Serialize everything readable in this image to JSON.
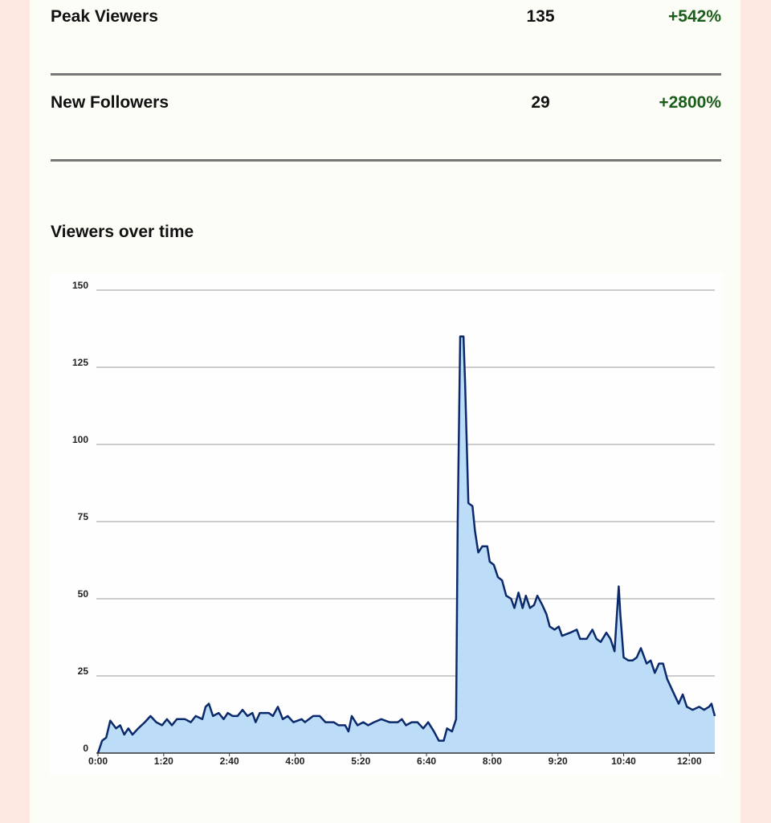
{
  "stats": {
    "rows": [
      {
        "label": "Peak Viewers",
        "value": 135,
        "change": "+542%"
      },
      {
        "label": "New Followers",
        "value": 29,
        "change": "+2800%"
      }
    ]
  },
  "chart_data": {
    "type": "area",
    "title": "Viewers over time",
    "x": [
      0,
      5,
      10,
      15,
      22,
      27,
      32,
      37,
      42,
      49,
      57,
      64,
      71,
      78,
      84,
      90,
      96,
      106,
      113,
      119,
      127,
      131,
      135,
      140,
      147,
      153,
      158,
      164,
      170,
      176,
      182,
      188,
      192,
      197,
      208,
      213,
      219,
      225,
      231,
      238,
      248,
      252,
      262,
      270,
      277,
      287,
      293,
      301,
      305,
      309,
      316,
      323,
      329,
      336,
      345,
      355,
      365,
      370,
      375,
      382,
      389,
      396,
      402,
      409,
      415,
      421,
      425,
      431,
      436,
      438,
      441,
      445,
      447,
      451,
      456,
      459,
      463,
      468,
      474,
      477,
      482,
      487,
      492,
      497,
      503,
      507,
      512,
      517,
      521,
      526,
      531,
      535,
      541,
      546,
      550,
      556,
      561,
      565,
      575,
      583,
      587,
      595,
      602,
      607,
      612,
      619,
      624,
      629,
      634,
      636,
      640,
      646,
      651,
      656,
      661,
      668,
      673,
      678,
      683,
      688,
      693,
      700,
      707,
      712,
      717,
      724,
      732,
      738,
      744,
      747,
      751
    ],
    "values": [
      0,
      4,
      5,
      10.5,
      8,
      9,
      6,
      8,
      6,
      8,
      10,
      12,
      10,
      9,
      11,
      9,
      11,
      11,
      10,
      12,
      11,
      15,
      16,
      12,
      13,
      11,
      13,
      12,
      12,
      14,
      12,
      13,
      10,
      13,
      13,
      12,
      15,
      11,
      12,
      10,
      11,
      10,
      12,
      12,
      10,
      10,
      9,
      9,
      7,
      12,
      9,
      10,
      9,
      10,
      11,
      10,
      10,
      11,
      9,
      10,
      10,
      8,
      10,
      7,
      4,
      4,
      8,
      7,
      11,
      75,
      135,
      135,
      120,
      81,
      80,
      72,
      65,
      67,
      67,
      62,
      61,
      57,
      56,
      51,
      50,
      47,
      52,
      47,
      51,
      47,
      48,
      51,
      48,
      45,
      41,
      40,
      41,
      38,
      39,
      40,
      37,
      37,
      40,
      37,
      36,
      39,
      37,
      33,
      54,
      45,
      31,
      30,
      30,
      31,
      34,
      29,
      30,
      26,
      29,
      29,
      24,
      20,
      16,
      19,
      15,
      14,
      15,
      14,
      15,
      16,
      12
    ],
    "color": "#0b2a6b",
    "fill": "#bcdcf7",
    "xlim": [
      0,
      751
    ],
    "xticks": [
      {
        "value": 0,
        "label": "0:00"
      },
      {
        "value": 80,
        "label": "1:20"
      },
      {
        "value": 160,
        "label": "2:40"
      },
      {
        "value": 240,
        "label": "4:00"
      },
      {
        "value": 320,
        "label": "5:20"
      },
      {
        "value": 400,
        "label": "6:40"
      },
      {
        "value": 480,
        "label": "8:00"
      },
      {
        "value": 560,
        "label": "9:20"
      },
      {
        "value": 640,
        "label": "10:40"
      },
      {
        "value": 720,
        "label": "12:00"
      }
    ],
    "ylim": [
      0,
      150
    ],
    "yticks": [
      0,
      25,
      50,
      75,
      100,
      125,
      150
    ],
    "grid": true
  }
}
